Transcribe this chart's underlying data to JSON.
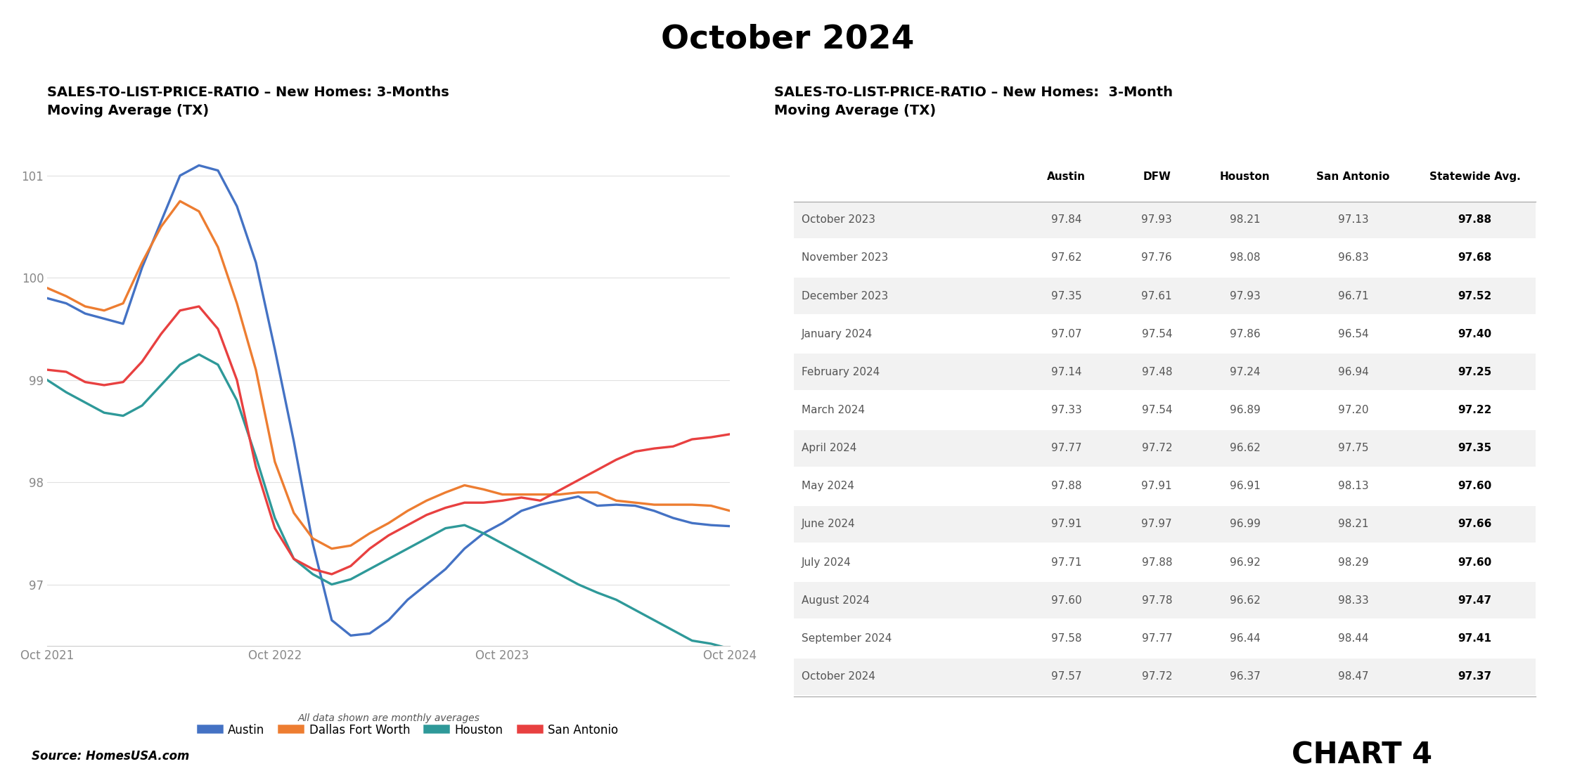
{
  "title": "October 2024",
  "left_chart_title": "SALES-TO-LIST-PRICE-RATIO – New Homes: 3-Months\nMoving Average (TX)",
  "right_chart_title": "SALES-TO-LIST-PRICE-RATIO – New Homes:  3-Month\nMoving Average (TX)",
  "source": "Source: HomesUSA.com",
  "chart_label": "CHART 4",
  "footnote": "All data shown are monthly averages",
  "x_labels": [
    "Oct 2021",
    "Oct 2022",
    "Oct 2023",
    "Oct 2024"
  ],
  "ylim": [
    96.4,
    101.5
  ],
  "yticks": [
    97,
    98,
    99,
    100,
    101
  ],
  "series_data": {
    "Austin": [
      99.8,
      99.75,
      99.65,
      99.6,
      99.55,
      100.1,
      100.55,
      101.0,
      101.1,
      101.05,
      100.7,
      100.15,
      99.3,
      98.4,
      97.4,
      96.65,
      96.5,
      96.52,
      96.65,
      96.85,
      97.0,
      97.15,
      97.35,
      97.5,
      97.6,
      97.72,
      97.78,
      97.82,
      97.86,
      97.77,
      97.78,
      97.77,
      97.72,
      97.65,
      97.6,
      97.58,
      97.57
    ],
    "Dallas Fort Worth": [
      99.9,
      99.82,
      99.72,
      99.68,
      99.75,
      100.15,
      100.5,
      100.75,
      100.65,
      100.3,
      99.75,
      99.1,
      98.2,
      97.7,
      97.45,
      97.35,
      97.38,
      97.5,
      97.6,
      97.72,
      97.82,
      97.9,
      97.97,
      97.93,
      97.88,
      97.88,
      97.88,
      97.88,
      97.9,
      97.9,
      97.82,
      97.8,
      97.78,
      97.78,
      97.78,
      97.77,
      97.72
    ],
    "Houston": [
      99.0,
      98.88,
      98.78,
      98.68,
      98.65,
      98.75,
      98.95,
      99.15,
      99.25,
      99.15,
      98.8,
      98.25,
      97.65,
      97.25,
      97.1,
      97.0,
      97.05,
      97.15,
      97.25,
      97.35,
      97.45,
      97.55,
      97.58,
      97.5,
      97.4,
      97.3,
      97.2,
      97.1,
      97.0,
      96.92,
      96.85,
      96.75,
      96.65,
      96.55,
      96.45,
      96.42,
      96.37
    ],
    "San Antonio": [
      99.1,
      99.08,
      98.98,
      98.95,
      98.98,
      99.18,
      99.45,
      99.68,
      99.72,
      99.5,
      99.0,
      98.15,
      97.55,
      97.25,
      97.15,
      97.1,
      97.18,
      97.35,
      97.48,
      97.58,
      97.68,
      97.75,
      97.8,
      97.8,
      97.82,
      97.85,
      97.82,
      97.92,
      98.02,
      98.12,
      98.22,
      98.3,
      98.33,
      98.35,
      98.42,
      98.44,
      98.47
    ]
  },
  "table_data": {
    "months": [
      "October 2023",
      "November 2023",
      "December 2023",
      "January 2024",
      "February 2024",
      "March 2024",
      "April 2024",
      "May 2024",
      "June 2024",
      "July 2024",
      "August 2024",
      "September 2024",
      "October 2024"
    ],
    "Austin": [
      97.84,
      97.62,
      97.35,
      97.07,
      97.14,
      97.33,
      97.77,
      97.88,
      97.91,
      97.71,
      97.6,
      97.58,
      97.57
    ],
    "DFW": [
      97.93,
      97.76,
      97.61,
      97.54,
      97.48,
      97.54,
      97.72,
      97.91,
      97.97,
      97.88,
      97.78,
      97.77,
      97.72
    ],
    "Houston": [
      98.21,
      98.08,
      97.93,
      97.86,
      97.24,
      96.89,
      96.62,
      96.91,
      96.99,
      96.92,
      96.62,
      96.44,
      96.37
    ],
    "San Antonio": [
      97.13,
      96.83,
      96.71,
      96.54,
      96.94,
      97.2,
      97.75,
      98.13,
      98.21,
      98.29,
      98.33,
      98.44,
      98.47
    ],
    "Statewide": [
      97.88,
      97.68,
      97.52,
      97.4,
      97.25,
      97.22,
      97.35,
      97.6,
      97.66,
      97.6,
      97.47,
      97.41,
      97.37
    ]
  },
  "col_headers": [
    "",
    "Austin",
    "DFW",
    "Houston",
    "San Antonio",
    "Statewide Avg."
  ],
  "background_color": "#ffffff",
  "colors": {
    "Austin": "#4472c4",
    "Dallas Fort Worth": "#ed7d31",
    "Houston": "#2e9999",
    "San Antonio": "#e84040"
  }
}
